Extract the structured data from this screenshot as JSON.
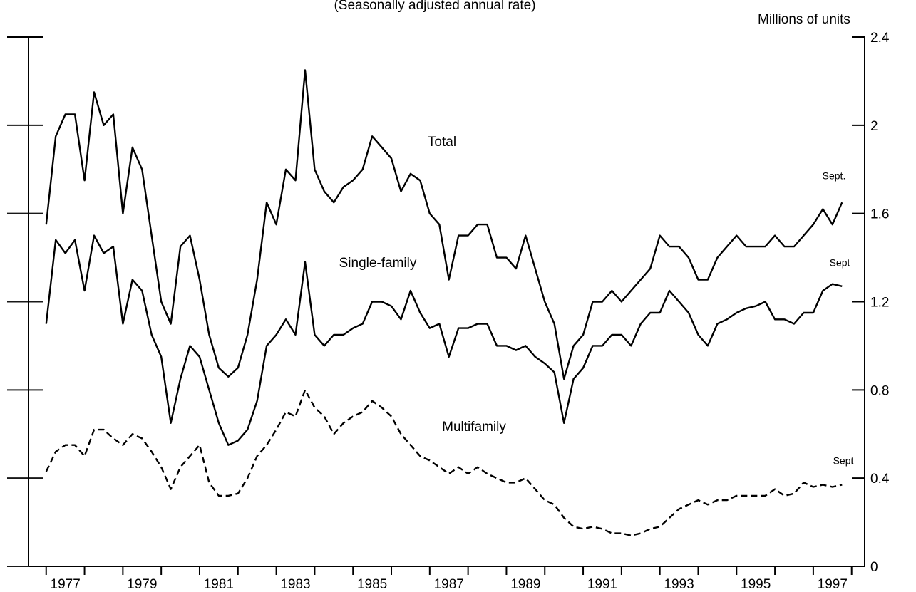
{
  "chart_data": {
    "type": "line",
    "title": "(Seasonally adjusted annual rate)",
    "y_axis_label": "Millions of units",
    "annotations": [
      "Total",
      "Single-family",
      "Multifamily",
      "Sept.",
      "Sept",
      "Sept"
    ],
    "x": [
      1977,
      1977.25,
      1977.5,
      1977.75,
      1978,
      1978.25,
      1978.5,
      1978.75,
      1979,
      1979.25,
      1979.5,
      1979.75,
      1980,
      1980.25,
      1980.5,
      1980.75,
      1981,
      1981.25,
      1981.5,
      1981.75,
      1982,
      1982.25,
      1982.5,
      1982.75,
      1983,
      1983.25,
      1983.5,
      1983.75,
      1984,
      1984.25,
      1984.5,
      1984.75,
      1985,
      1985.25,
      1985.5,
      1985.75,
      1986,
      1986.25,
      1986.5,
      1986.75,
      1987,
      1987.25,
      1987.5,
      1987.75,
      1988,
      1988.25,
      1988.5,
      1988.75,
      1989,
      1989.25,
      1989.5,
      1989.75,
      1990,
      1990.25,
      1990.5,
      1990.75,
      1991,
      1991.25,
      1991.5,
      1991.75,
      1992,
      1992.25,
      1992.5,
      1992.75,
      1993,
      1993.25,
      1993.5,
      1993.75,
      1994,
      1994.25,
      1994.5,
      1994.75,
      1995,
      1995.25,
      1995.5,
      1995.75,
      1996,
      1996.25,
      1996.5,
      1996.75,
      1997,
      1997.25,
      1997.5,
      1997.75
    ],
    "series": [
      {
        "name": "Total",
        "color": "#000000",
        "dashed": false,
        "values": [
          1.55,
          1.95,
          2.05,
          2.05,
          1.75,
          2.15,
          2.0,
          2.05,
          1.6,
          1.9,
          1.8,
          1.5,
          1.2,
          1.1,
          1.45,
          1.5,
          1.3,
          1.05,
          0.9,
          0.86,
          0.9,
          1.05,
          1.3,
          1.65,
          1.55,
          1.8,
          1.75,
          2.25,
          1.8,
          1.7,
          1.65,
          1.72,
          1.75,
          1.8,
          1.95,
          1.9,
          1.85,
          1.7,
          1.78,
          1.75,
          1.6,
          1.55,
          1.3,
          1.5,
          1.5,
          1.55,
          1.55,
          1.4,
          1.4,
          1.35,
          1.5,
          1.35,
          1.2,
          1.1,
          0.85,
          1.0,
          1.05,
          1.2,
          1.2,
          1.25,
          1.2,
          1.25,
          1.3,
          1.35,
          1.5,
          1.45,
          1.45,
          1.4,
          1.3,
          1.3,
          1.4,
          1.45,
          1.5,
          1.45,
          1.45,
          1.45,
          1.5,
          1.45,
          1.45,
          1.5,
          1.55,
          1.62,
          1.55,
          1.65
        ]
      },
      {
        "name": "Single-family",
        "color": "#000000",
        "dashed": false,
        "values": [
          1.1,
          1.48,
          1.42,
          1.48,
          1.25,
          1.5,
          1.42,
          1.45,
          1.1,
          1.3,
          1.25,
          1.05,
          0.95,
          0.65,
          0.85,
          1.0,
          0.95,
          0.8,
          0.65,
          0.55,
          0.57,
          0.62,
          0.75,
          1.0,
          1.05,
          1.12,
          1.05,
          1.38,
          1.05,
          1.0,
          1.05,
          1.05,
          1.08,
          1.1,
          1.2,
          1.2,
          1.18,
          1.12,
          1.25,
          1.15,
          1.08,
          1.1,
          0.95,
          1.08,
          1.08,
          1.1,
          1.1,
          1.0,
          1.0,
          0.98,
          1.0,
          0.95,
          0.92,
          0.88,
          0.65,
          0.85,
          0.9,
          1.0,
          1.0,
          1.05,
          1.05,
          1.0,
          1.1,
          1.15,
          1.15,
          1.25,
          1.2,
          1.15,
          1.05,
          1.0,
          1.1,
          1.12,
          1.15,
          1.17,
          1.18,
          1.2,
          1.12,
          1.12,
          1.1,
          1.15,
          1.15,
          1.25,
          1.28,
          1.27
        ]
      },
      {
        "name": "Multifamily",
        "color": "#000000",
        "dashed": true,
        "values": [
          0.43,
          0.52,
          0.55,
          0.55,
          0.5,
          0.62,
          0.62,
          0.58,
          0.55,
          0.6,
          0.58,
          0.52,
          0.45,
          0.35,
          0.45,
          0.5,
          0.55,
          0.38,
          0.32,
          0.32,
          0.33,
          0.4,
          0.5,
          0.55,
          0.62,
          0.7,
          0.68,
          0.8,
          0.72,
          0.68,
          0.6,
          0.65,
          0.68,
          0.7,
          0.75,
          0.72,
          0.68,
          0.6,
          0.55,
          0.5,
          0.48,
          0.45,
          0.42,
          0.45,
          0.42,
          0.45,
          0.42,
          0.4,
          0.38,
          0.38,
          0.4,
          0.35,
          0.3,
          0.28,
          0.22,
          0.18,
          0.17,
          0.18,
          0.17,
          0.15,
          0.15,
          0.14,
          0.15,
          0.17,
          0.18,
          0.22,
          0.26,
          0.28,
          0.3,
          0.28,
          0.3,
          0.3,
          0.32,
          0.32,
          0.32,
          0.32,
          0.35,
          0.32,
          0.33,
          0.38,
          0.36,
          0.37,
          0.36,
          0.37
        ]
      }
    ],
    "xlim": [
      1976.54,
      1998.34
    ],
    "xticks": [
      1977,
      1979,
      1981,
      1983,
      1985,
      1987,
      1989,
      1991,
      1993,
      1995,
      1997
    ],
    "ylim": [
      0,
      2.4
    ],
    "yticks": [
      0,
      0.4,
      0.8,
      1.2,
      1.6,
      2,
      2.4
    ],
    "y_axis_side": "right"
  }
}
